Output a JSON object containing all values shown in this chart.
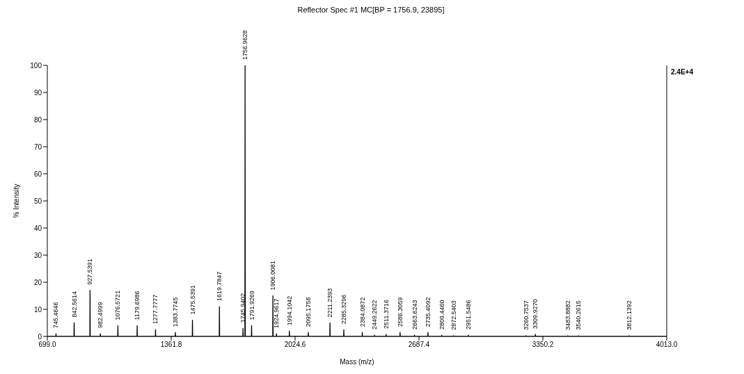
{
  "chart_data": {
    "type": "line",
    "title": "Reflector Spec #1 MC[BP = 1756.9, 23895]",
    "xlabel": "Mass (m/z)",
    "ylabel": "% Intensity",
    "xlim": [
      699,
      4013
    ],
    "xticks": [
      {
        "value": 699,
        "label": "699.0"
      },
      {
        "value": 1361.8,
        "label": "1361.8"
      },
      {
        "value": 2024.6,
        "label": "2024.6"
      },
      {
        "value": 2687.4,
        "label": "2687.4"
      },
      {
        "value": 3350.2,
        "label": "3350.2"
      },
      {
        "value": 4013,
        "label": "4013.0"
      }
    ],
    "ylim": [
      0,
      100
    ],
    "yticks": [
      0,
      10,
      20,
      30,
      40,
      50,
      60,
      70,
      80,
      90,
      100
    ],
    "grid": false,
    "marker": "none",
    "line_style": "solid",
    "series": [
      {
        "color": "#000000",
        "x": [
          699,
          744.5,
          745.4646,
          746.5,
          841.5,
          842.5614,
          843.5,
          926.5,
          927.5391,
          928.5,
          981.5,
          982.4999,
          983.5,
          1075.5,
          1076.5721,
          1077.5,
          1178.7,
          1179.6986,
          1180.7,
          1276.8,
          1277.7777,
          1278.8,
          1382.8,
          1383.7745,
          1384.8,
          1474.5,
          1475.5391,
          1476.5,
          1618.8,
          1619.7847,
          1620.8,
          1744.9,
          1745.9402,
          1746.9,
          1756,
          1756.9628,
          1758,
          1790.9,
          1791.9269,
          1792.9,
          1905,
          1906.0081,
          1907,
          1923.9,
          1924.9617,
          1925.9,
          1993.1,
          1994.1042,
          1995.1,
          2094.2,
          2095.1758,
          2096.2,
          2210.2,
          2211.2393,
          2212.2,
          2284.3,
          2285.3296,
          2286.3,
          2383.1,
          2384.0872,
          2385.1,
          2448.3,
          2449.2622,
          2450.3,
          2510.4,
          2511.3716,
          2512.4,
          2585.3,
          2586.3059,
          2587.3,
          2662.6,
          2663.6243,
          2664.6,
          2734.4,
          2735.4092,
          2736.4,
          2808.4,
          2809.446,
          2810.4,
          2871.5,
          2872.5403,
          2873.5,
          2950.5,
          2951.5486,
          2952.5,
          3259.8,
          3260.7537,
          3261.8,
          3308.9,
          3309.927,
          3310.9,
          3482.9,
          3483.8882,
          3484.9,
          3539.3,
          3540.2615,
          3541.3,
          3811.1,
          3812.1392,
          3813.1,
          4013
        ],
        "values": [
          0,
          0,
          1,
          0,
          0,
          5,
          0,
          0,
          17,
          0,
          0,
          1,
          0,
          0,
          4,
          0,
          0,
          4,
          0,
          0,
          2.5,
          0,
          0,
          1.5,
          0,
          0,
          6,
          0,
          0,
          11,
          0,
          0,
          3,
          0,
          0,
          100,
          0,
          0,
          4,
          0,
          0,
          15,
          0,
          0,
          1,
          0,
          0,
          2,
          0,
          0,
          1.5,
          0,
          0,
          5,
          0,
          0,
          2.5,
          0,
          0,
          1.5,
          0,
          0,
          0.5,
          0,
          0,
          0.8,
          0,
          0,
          1.5,
          0,
          0,
          0.5,
          0,
          0,
          1.5,
          0,
          0,
          0.5,
          0,
          0,
          0.3,
          0,
          0,
          0.5,
          0,
          0,
          0.3,
          0,
          0,
          0.8,
          0,
          0,
          0.3,
          0,
          0,
          0.3,
          0,
          0,
          0.3,
          0,
          0
        ]
      }
    ],
    "annotations": [
      "2.4E+4",
      {
        "text": "745.4646",
        "x": 745.4646,
        "y": 1
      },
      {
        "text": "842.5614",
        "x": 842.5614,
        "y": 5
      },
      {
        "text": "927.5391",
        "x": 927.5391,
        "y": 17
      },
      {
        "text": "982.4999",
        "x": 982.4999,
        "y": 1
      },
      {
        "text": "1076.5721",
        "x": 1076.5721,
        "y": 4
      },
      {
        "text": "1179.6986",
        "x": 1179.6986,
        "y": 4
      },
      {
        "text": "1277.7777",
        "x": 1277.7777,
        "y": 2.5
      },
      {
        "text": "1383.7745",
        "x": 1383.7745,
        "y": 1.5
      },
      {
        "text": "1475.5391",
        "x": 1475.5391,
        "y": 6
      },
      {
        "text": "1619.7847",
        "x": 1619.7847,
        "y": 11
      },
      {
        "text": "1745.9402",
        "x": 1745.9402,
        "y": 3
      },
      {
        "text": "1756.9628",
        "x": 1756.9628,
        "y": 100
      },
      {
        "text": "1791.9269",
        "x": 1791.9269,
        "y": 4
      },
      {
        "text": "1906.0081",
        "x": 1906.0081,
        "y": 15
      },
      {
        "text": "1924.9617",
        "x": 1924.9617,
        "y": 1
      },
      {
        "text": "1994.1042",
        "x": 1994.1042,
        "y": 2
      },
      {
        "text": "2095.1758",
        "x": 2095.1758,
        "y": 1.5
      },
      {
        "text": "2211.2393",
        "x": 2211.2393,
        "y": 5
      },
      {
        "text": "2285.3296",
        "x": 2285.3296,
        "y": 2.5
      },
      {
        "text": "2384.0872",
        "x": 2384.0872,
        "y": 1.5
      },
      {
        "text": "2449.2622",
        "x": 2449.2622,
        "y": 0.5
      },
      {
        "text": "2511.3716",
        "x": 2511.3716,
        "y": 0.8
      },
      {
        "text": "2586.3059",
        "x": 2586.3059,
        "y": 1.5
      },
      {
        "text": "2663.6243",
        "x": 2663.6243,
        "y": 0.5
      },
      {
        "text": "2735.4092",
        "x": 2735.4092,
        "y": 1.5
      },
      {
        "text": "2809.4460",
        "x": 2809.446,
        "y": 0.5
      },
      {
        "text": "2872.5403",
        "x": 2872.5403,
        "y": 0.3
      },
      {
        "text": "2951.5486",
        "x": 2951.5486,
        "y": 0.5
      },
      {
        "text": "3260.7537",
        "x": 3260.7537,
        "y": 0.3
      },
      {
        "text": "3309.9270",
        "x": 3309.927,
        "y": 0.8
      },
      {
        "text": "3483.8882",
        "x": 3483.8882,
        "y": 0.3
      },
      {
        "text": "3540.2615",
        "x": 3540.2615,
        "y": 0.3
      },
      {
        "text": "3812.1392",
        "x": 3812.1392,
        "y": 0.3
      }
    ]
  }
}
